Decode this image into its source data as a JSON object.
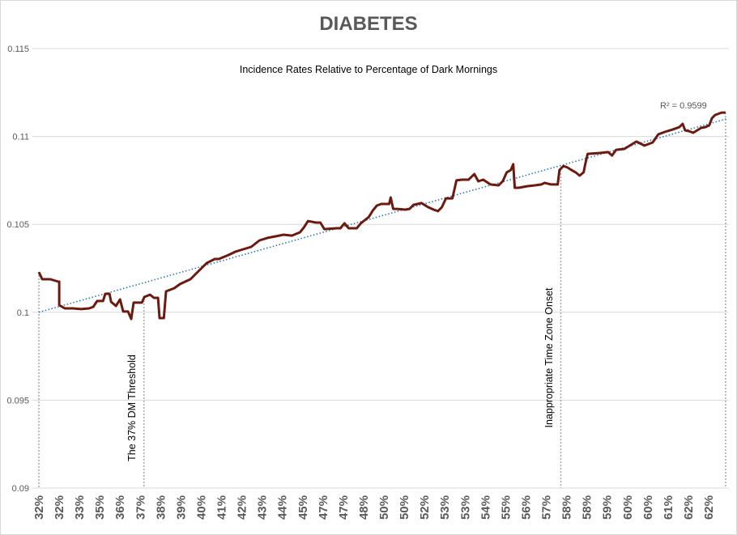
{
  "chart_data": {
    "type": "line",
    "title": "DIABETES",
    "subtitle": "Incidence Rates Relative to Percentage of Dark Mornings",
    "xlabel": "",
    "ylabel": "",
    "ylim": [
      0.09,
      0.115
    ],
    "yticks": [
      "0.09",
      "0.095",
      "0.1",
      "0.105",
      "0.11",
      "0.115"
    ],
    "ytick_values": [
      0.09,
      0.095,
      0.1,
      0.105,
      0.11,
      0.115
    ],
    "xlim": [
      32,
      62.76
    ],
    "xtick_labels": [
      "32%",
      "32%",
      "33%",
      "35%",
      "36%",
      "37%",
      "38%",
      "39%",
      "40%",
      "41%",
      "42%",
      "43%",
      "44%",
      "45%",
      "47%",
      "47%",
      "48%",
      "50%",
      "50%",
      "52%",
      "53%",
      "53%",
      "54%",
      "55%",
      "56%",
      "57%",
      "58%",
      "58%",
      "59%",
      "60%",
      "60%",
      "61%",
      "62%",
      "62%"
    ],
    "grid": "horizontal",
    "legend": "none",
    "colors": {
      "series": "#6b1a10",
      "trendline": "#2e75b6",
      "grid": "#d9d9d9",
      "annotation_line": "#a6a6a6"
    },
    "series": [
      {
        "points": [
          [
            32.0,
            0.10229
          ],
          [
            32.15,
            0.10188
          ],
          [
            32.51,
            0.10188
          ],
          [
            32.87,
            0.10174
          ],
          [
            32.91,
            0.10174
          ],
          [
            32.91,
            0.10041
          ],
          [
            33.16,
            0.10022
          ],
          [
            33.52,
            0.10022
          ],
          [
            33.89,
            0.10018
          ],
          [
            34.25,
            0.10022
          ],
          [
            34.43,
            0.10031
          ],
          [
            34.61,
            0.10064
          ],
          [
            34.87,
            0.10064
          ],
          [
            34.97,
            0.10105
          ],
          [
            35.16,
            0.10105
          ],
          [
            35.23,
            0.10059
          ],
          [
            35.45,
            0.10036
          ],
          [
            35.63,
            0.10073
          ],
          [
            35.77,
            0.10004
          ],
          [
            35.99,
            0.10004
          ],
          [
            36.13,
            0.09962
          ],
          [
            36.24,
            0.10055
          ],
          [
            36.61,
            0.10055
          ],
          [
            36.72,
            0.10087
          ],
          [
            36.97,
            0.101
          ],
          [
            37.15,
            0.10082
          ],
          [
            37.33,
            0.10082
          ],
          [
            37.4,
            0.09967
          ],
          [
            37.59,
            0.09967
          ],
          [
            37.69,
            0.10119
          ],
          [
            38.06,
            0.10137
          ],
          [
            38.31,
            0.1016
          ],
          [
            38.78,
            0.10188
          ],
          [
            39.14,
            0.10234
          ],
          [
            39.51,
            0.1028
          ],
          [
            39.87,
            0.10303
          ],
          [
            40.05,
            0.10303
          ],
          [
            40.49,
            0.10326
          ],
          [
            40.78,
            0.10344
          ],
          [
            41.14,
            0.10358
          ],
          [
            41.5,
            0.10372
          ],
          [
            41.87,
            0.10409
          ],
          [
            42.23,
            0.10423
          ],
          [
            42.59,
            0.10432
          ],
          [
            42.95,
            0.10441
          ],
          [
            43.32,
            0.10436
          ],
          [
            43.68,
            0.10455
          ],
          [
            43.86,
            0.10483
          ],
          [
            44.04,
            0.10519
          ],
          [
            44.4,
            0.1051
          ],
          [
            44.59,
            0.1051
          ],
          [
            44.77,
            0.10473
          ],
          [
            45.31,
            0.10478
          ],
          [
            45.49,
            0.10478
          ],
          [
            45.67,
            0.10506
          ],
          [
            45.86,
            0.10478
          ],
          [
            46.22,
            0.10478
          ],
          [
            46.4,
            0.10506
          ],
          [
            46.58,
            0.10524
          ],
          [
            46.76,
            0.10542
          ],
          [
            46.94,
            0.10579
          ],
          [
            47.12,
            0.10607
          ],
          [
            47.31,
            0.10616
          ],
          [
            47.67,
            0.10616
          ],
          [
            47.74,
            0.10653
          ],
          [
            47.85,
            0.10588
          ],
          [
            48.03,
            0.10588
          ],
          [
            48.39,
            0.10584
          ],
          [
            48.58,
            0.10588
          ],
          [
            48.76,
            0.10611
          ],
          [
            49.12,
            0.10621
          ],
          [
            49.41,
            0.10598
          ],
          [
            49.66,
            0.10584
          ],
          [
            49.85,
            0.10575
          ],
          [
            50.03,
            0.10598
          ],
          [
            50.21,
            0.10648
          ],
          [
            50.5,
            0.10648
          ],
          [
            50.68,
            0.1075
          ],
          [
            50.93,
            0.10754
          ],
          [
            51.22,
            0.10754
          ],
          [
            51.48,
            0.10786
          ],
          [
            51.66,
            0.10745
          ],
          [
            51.88,
            0.10754
          ],
          [
            52.2,
            0.10727
          ],
          [
            52.57,
            0.10722
          ],
          [
            52.75,
            0.10745
          ],
          [
            52.93,
            0.10796
          ],
          [
            53.11,
            0.10809
          ],
          [
            53.22,
            0.10842
          ],
          [
            53.29,
            0.10708
          ],
          [
            53.47,
            0.10708
          ],
          [
            53.83,
            0.10717
          ],
          [
            54.19,
            0.10722
          ],
          [
            54.48,
            0.10727
          ],
          [
            54.63,
            0.10736
          ],
          [
            54.92,
            0.10727
          ],
          [
            55.21,
            0.10727
          ],
          [
            55.29,
            0.10809
          ],
          [
            55.47,
            0.10832
          ],
          [
            55.65,
            0.10823
          ],
          [
            55.83,
            0.10809
          ],
          [
            56.01,
            0.10796
          ],
          [
            56.19,
            0.10777
          ],
          [
            56.37,
            0.10796
          ],
          [
            56.45,
            0.10846
          ],
          [
            56.55,
            0.10901
          ],
          [
            57.1,
            0.10906
          ],
          [
            57.46,
            0.10911
          ],
          [
            57.64,
            0.10892
          ],
          [
            57.82,
            0.10924
          ],
          [
            58.19,
            0.10929
          ],
          [
            58.55,
            0.10957
          ],
          [
            58.73,
            0.10971
          ],
          [
            59.09,
            0.10948
          ],
          [
            59.46,
            0.10966
          ],
          [
            59.71,
            0.11012
          ],
          [
            60.0,
            0.11026
          ],
          [
            60.36,
            0.1104
          ],
          [
            60.65,
            0.11053
          ],
          [
            60.8,
            0.11072
          ],
          [
            60.91,
            0.11035
          ],
          [
            61.09,
            0.1103
          ],
          [
            61.27,
            0.11021
          ],
          [
            61.63,
            0.11049
          ],
          [
            61.81,
            0.11053
          ],
          [
            61.99,
            0.11063
          ],
          [
            62.11,
            0.11104
          ],
          [
            62.25,
            0.11122
          ],
          [
            62.54,
            0.11136
          ],
          [
            62.72,
            0.11136
          ]
        ]
      }
    ],
    "trendline": {
      "type": "linear",
      "style": "dotted",
      "from": [
        32,
        0.1
      ],
      "to": [
        62.76,
        0.111
      ],
      "r2_label": "R² = 0.9599"
    },
    "annotations": [
      {
        "text": "The 37% DM Threshold",
        "x": 36.7
      },
      {
        "text": "Inappropriate Time Zone Onset",
        "x": 55.35
      }
    ],
    "reference_lines_x": [
      32.0,
      36.7,
      55.35,
      62.72
    ]
  }
}
